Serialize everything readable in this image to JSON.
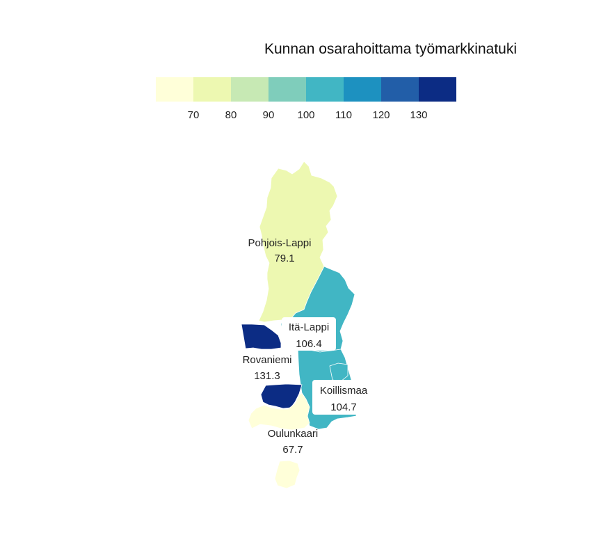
{
  "legend": {
    "title": "Kunnan osarahoittama työmarkkinatuki",
    "colors": [
      "#ffffd9",
      "#edf8b1",
      "#c7e9b4",
      "#7fcdbb",
      "#41b6c4",
      "#1d91c0",
      "#225ea8",
      "#0c2c84"
    ],
    "ticks": [
      "70",
      "80",
      "90",
      "100",
      "110",
      "120",
      "130"
    ]
  },
  "map_data": {
    "metric": "Kunnan osarahoittama työmarkkinatuki",
    "scale_min": 60,
    "scale_max": 140,
    "regions": [
      {
        "name": "Pohjois-Lappi",
        "value": 79.1,
        "display_value": "79.1",
        "label_box": false
      },
      {
        "name": "Itä-Lappi",
        "value": 106.4,
        "display_value": "106.4",
        "label_box": true
      },
      {
        "name": "Rovaniemi",
        "value": 131.3,
        "display_value": "131.3",
        "label_box": false
      },
      {
        "name": "Koillismaa",
        "value": 104.7,
        "display_value": "104.7",
        "label_box": true
      },
      {
        "name": "Oulunkaari",
        "value": 67.7,
        "display_value": "67.7",
        "label_box": false
      }
    ]
  }
}
